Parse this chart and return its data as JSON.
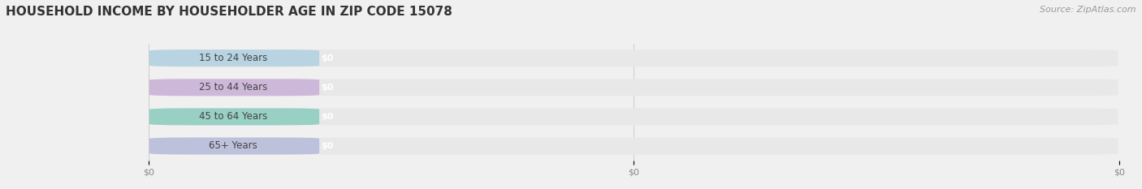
{
  "title": "HOUSEHOLD INCOME BY HOUSEHOLDER AGE IN ZIP CODE 15078",
  "source": "Source: ZipAtlas.com",
  "categories": [
    "15 to 24 Years",
    "25 to 44 Years",
    "45 to 64 Years",
    "65+ Years"
  ],
  "values": [
    0,
    0,
    0,
    0
  ],
  "bar_colors": [
    "#a8cce0",
    "#c4a8d4",
    "#7ec8b8",
    "#b0b4d8"
  ],
  "background_color": "#f0f0f0",
  "bar_bg_color": "#e8e8e8",
  "plot_bg_color": "#f8f8f8",
  "title_fontsize": 11,
  "label_fontsize": 8.5,
  "tick_fontsize": 8,
  "source_fontsize": 8
}
